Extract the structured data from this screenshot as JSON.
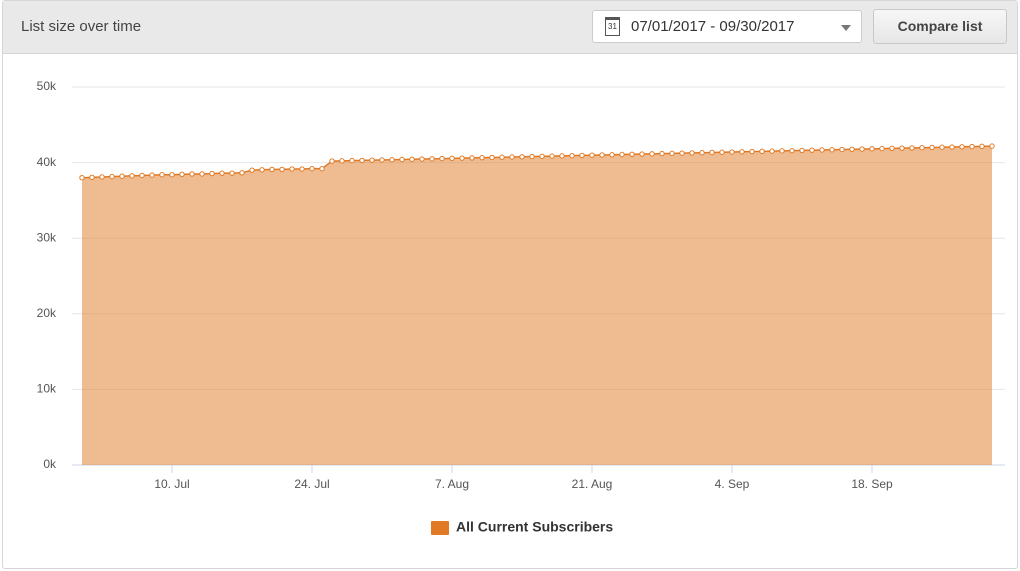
{
  "header": {
    "title": "List size over time",
    "date_picker": {
      "icon_text": "31",
      "range": "07/01/2017 - 09/30/2017"
    },
    "compare_button": "Compare list"
  },
  "chart_data": {
    "type": "area",
    "categories": [
      null,
      null,
      null,
      null,
      null,
      null,
      null,
      null,
      null,
      "10. Jul",
      null,
      null,
      null,
      null,
      null,
      null,
      null,
      null,
      null,
      null,
      null,
      null,
      null,
      "24. Jul",
      null,
      null,
      null,
      null,
      null,
      null,
      null,
      null,
      null,
      null,
      null,
      null,
      null,
      "7. Aug",
      null,
      null,
      null,
      null,
      null,
      null,
      null,
      null,
      null,
      null,
      null,
      null,
      null,
      "21. Aug",
      null,
      null,
      null,
      null,
      null,
      null,
      null,
      null,
      null,
      null,
      null,
      null,
      null,
      "4. Sep",
      null,
      null,
      null,
      null,
      null,
      null,
      null,
      null,
      null,
      null,
      null,
      null,
      null,
      "18. Sep",
      null,
      null,
      null,
      null,
      null,
      null,
      null,
      null,
      null,
      null,
      null,
      null
    ],
    "series": [
      {
        "name": "All Current Subscribers",
        "color": "#e07a26",
        "values": [
          38000,
          38050,
          38100,
          38150,
          38200,
          38250,
          38300,
          38350,
          38400,
          38400,
          38450,
          38500,
          38500,
          38550,
          38600,
          38600,
          38650,
          39000,
          39050,
          39100,
          39100,
          39150,
          39150,
          39200,
          39200,
          40200,
          40230,
          40260,
          40290,
          40320,
          40350,
          40380,
          40410,
          40440,
          40470,
          40500,
          40530,
          40560,
          40590,
          40620,
          40650,
          40680,
          40710,
          40740,
          40770,
          40800,
          40830,
          40860,
          40890,
          40920,
          40950,
          40980,
          41010,
          41040,
          41070,
          41100,
          41130,
          41160,
          41190,
          41220,
          41250,
          41280,
          41310,
          41340,
          41370,
          41400,
          41430,
          41460,
          41490,
          41520,
          41550,
          41580,
          41610,
          41640,
          41670,
          41700,
          41730,
          41760,
          41790,
          41820,
          41850,
          41880,
          41910,
          41940,
          41970,
          42000,
          42030,
          42060,
          42090,
          42120,
          42150,
          42180
        ]
      }
    ],
    "ylim": [
      0,
      50000
    ],
    "yticks": [
      {
        "value": 0,
        "label": "0k"
      },
      {
        "value": 10000,
        "label": "10k"
      },
      {
        "value": 20000,
        "label": "20k"
      },
      {
        "value": 30000,
        "label": "30k"
      },
      {
        "value": 40000,
        "label": "40k"
      },
      {
        "value": 50000,
        "label": "50k"
      }
    ],
    "grid": true,
    "legend": "bottom"
  }
}
